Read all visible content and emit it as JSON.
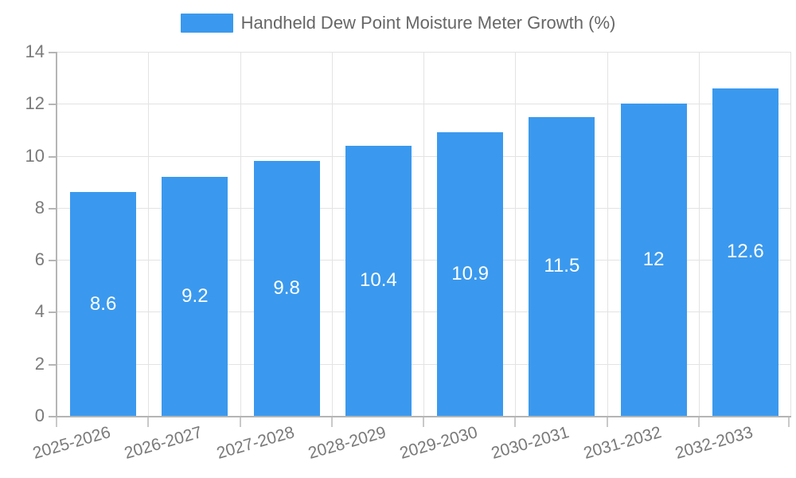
{
  "chart_data": {
    "type": "bar",
    "title": "Handheld Dew Point Moisture Meter Growth (%)",
    "categories": [
      "2025-2026",
      "2026-2027",
      "2027-2028",
      "2028-2029",
      "2029-2030",
      "2030-2031",
      "2031-2032",
      "2032-2033"
    ],
    "series": [
      {
        "name": "Handheld Dew Point Moisture Meter Growth (%)",
        "values": [
          8.6,
          9.2,
          9.8,
          10.4,
          10.9,
          11.5,
          12,
          12.6
        ],
        "value_labels": [
          "8.6",
          "9.2",
          "9.8",
          "10.4",
          "10.9",
          "11.5",
          "12",
          "12.6"
        ]
      }
    ],
    "xlabel": "",
    "ylabel": "",
    "ylim": [
      0,
      14
    ],
    "yticks": [
      0,
      2,
      4,
      6,
      8,
      10,
      12,
      14
    ],
    "grid": true,
    "legend_position": "top-center",
    "x_label_rotation_deg": -16,
    "colors": {
      "bar": "#3A99EE",
      "grid": "#e3e3e3",
      "axis": "#b5b5b5",
      "tick_label": "#7a7a7a",
      "title": "#666666",
      "value_label": "#ffffff",
      "background": "#ffffff"
    }
  }
}
